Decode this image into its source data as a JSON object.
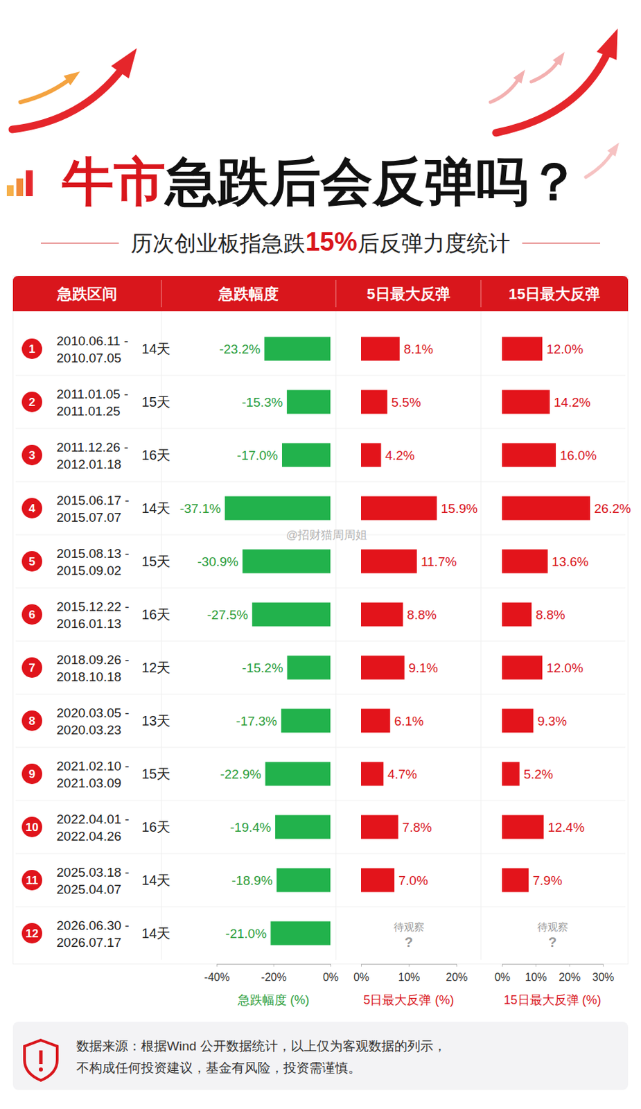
{
  "header": {
    "title_parts": [
      "牛市",
      "急跌后会反弹吗？"
    ],
    "subtitle_parts": [
      "历次创业板指急跌",
      "15%",
      "后反弹力度统计"
    ]
  },
  "watermark": "@招财猫周周姐",
  "table": {
    "columns": [
      "急跌区间",
      "急跌幅度",
      "5日最大反弹",
      "15日最大反弹"
    ],
    "rows": [
      {
        "no": 1,
        "start": "2010.06.11 -",
        "end": "2010.07.05",
        "days": "14天"
      },
      {
        "no": 2,
        "start": "2011.01.05 -",
        "end": "2011.01.25",
        "days": "15天"
      },
      {
        "no": 3,
        "start": "2011.12.26 -",
        "end": "2012.01.18",
        "days": "16天"
      },
      {
        "no": 4,
        "start": "2015.06.17 -",
        "end": "2015.07.07",
        "days": "14天"
      },
      {
        "no": 5,
        "start": "2015.08.13 -",
        "end": "2015.09.02",
        "days": "15天"
      },
      {
        "no": 6,
        "start": "2015.12.22 -",
        "end": "2016.01.13",
        "days": "16天"
      },
      {
        "no": 7,
        "start": "2018.09.26 -",
        "end": "2018.10.18",
        "days": "12天"
      },
      {
        "no": 8,
        "start": "2020.03.05 -",
        "end": "2020.03.23",
        "days": "13天"
      },
      {
        "no": 9,
        "start": "2021.02.10 -",
        "end": "2021.03.09",
        "days": "15天"
      },
      {
        "no": 10,
        "start": "2022.04.01 -",
        "end": "2022.04.26",
        "days": "16天"
      },
      {
        "no": 11,
        "start": "2025.03.18 -",
        "end": "2025.04.07",
        "days": "14天"
      },
      {
        "no": 12,
        "start": "2026.06.30 -",
        "end": "2026.07.17",
        "days": "14天"
      }
    ],
    "pending": "待观察",
    "pending_mark": "?"
  },
  "chart_data": [
    {
      "type": "bar",
      "orientation": "horizontal",
      "categories": [
        null,
        null,
        null,
        null,
        null,
        null,
        null,
        null,
        null,
        null,
        null,
        null
      ],
      "values": [
        -23.2,
        -15.3,
        -17.0,
        -37.1,
        -30.9,
        -27.5,
        -15.2,
        -17.3,
        -22.9,
        -19.4,
        -18.9,
        -21.0
      ],
      "value_labels": [
        "-23.2%",
        "-15.3%",
        "-17.0%",
        "-37.1%",
        "-30.9%",
        "-27.5%",
        "-15.2%",
        "-17.3%",
        "-22.9%",
        "-19.4%",
        "-18.9%",
        "-21.0%"
      ],
      "data_labels": true,
      "color": "#22b24c",
      "xlim": [
        -40,
        0
      ],
      "xticks": [
        {
          "value": -40,
          "label": "-40%"
        },
        {
          "value": -20,
          "label": "-20%"
        },
        {
          "value": 0,
          "label": "0%"
        }
      ],
      "xlabel": "急跌幅度 (%)"
    },
    {
      "type": "bar",
      "orientation": "horizontal",
      "categories": [
        null,
        null,
        null,
        null,
        null,
        null,
        null,
        null,
        null,
        null,
        null,
        null
      ],
      "values": [
        8.1,
        5.5,
        4.2,
        15.9,
        11.7,
        8.8,
        9.1,
        6.1,
        4.7,
        7.8,
        7.0,
        null
      ],
      "value_labels": [
        "8.1%",
        "5.5%",
        "4.2%",
        "15.9%",
        "11.7%",
        "8.8%",
        "9.1%",
        "6.1%",
        "4.7%",
        "7.8%",
        "7.0%",
        null
      ],
      "data_labels": true,
      "color": "#e3141b",
      "xlim": [
        0,
        20
      ],
      "xticks": [
        {
          "value": 0,
          "label": "0%"
        },
        {
          "value": 10,
          "label": "10%"
        },
        {
          "value": 20,
          "label": "20%"
        }
      ],
      "xlabel": "5日最大反弹 (%)"
    },
    {
      "type": "bar",
      "orientation": "horizontal",
      "categories": [
        null,
        null,
        null,
        null,
        null,
        null,
        null,
        null,
        null,
        null,
        null,
        null
      ],
      "values": [
        12.0,
        14.2,
        16.0,
        26.2,
        13.6,
        8.8,
        12.0,
        9.3,
        5.2,
        12.4,
        7.9,
        null
      ],
      "value_labels": [
        "12.0%",
        "14.2%",
        "16.0%",
        "26.2%",
        "13.6%",
        "8.8%",
        "12.0%",
        "9.3%",
        "5.2%",
        "12.4%",
        "7.9%",
        null
      ],
      "data_labels": true,
      "color": "#e3141b",
      "xlim": [
        0,
        30
      ],
      "xticks": [
        {
          "value": 0,
          "label": "0%"
        },
        {
          "value": 10,
          "label": "10%"
        },
        {
          "value": 20,
          "label": "20%"
        },
        {
          "value": 30,
          "label": "30%"
        }
      ],
      "xlabel": "15日最大反弹 (%)"
    }
  ],
  "footer": {
    "lines": [
      "数据来源：根据Wind 公开数据统计，以上仅为客观数据的列示，",
      "不构成任何投资建议，基金有风险，投资需谨慎。"
    ]
  }
}
